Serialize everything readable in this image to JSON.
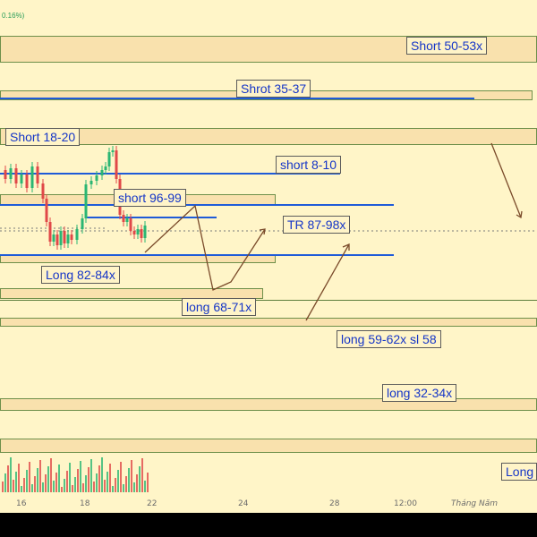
{
  "header": {
    "change_pct": "0.16%)"
  },
  "annotations": [
    "Short 50-53x",
    "Shrot 35-37",
    "Short 18-20",
    "short 8-10",
    "short 96-99",
    "TR 87-98x",
    "Long 82-84x",
    "long 68-71x",
    "long 59-62x sl 58",
    "long 32-34x",
    "Long"
  ],
  "time_axis": [
    "16",
    "18",
    "22",
    "24",
    "28",
    "12:00",
    "Tháng Năm"
  ],
  "colors": {
    "background": "#fff5c8",
    "zone_fill": "#f9e1ad",
    "zone_border": "#6e8f4a",
    "level_line": "#1f5bd8",
    "label_text": "#1636c7",
    "candle_up": "#2bb673",
    "candle_down": "#e04848",
    "path_arrow": "#7a4a2a"
  }
}
